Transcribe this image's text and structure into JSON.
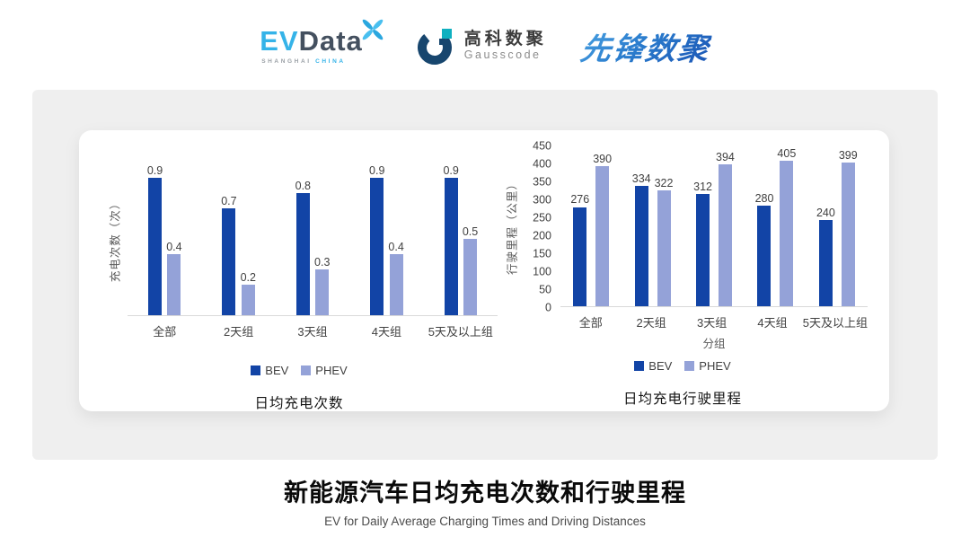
{
  "header": {
    "evdata": {
      "ev": "EV",
      "data": "Data",
      "sub_left": "SHANGHAI",
      "sub_right": "CHINA"
    },
    "gausscode": {
      "cn": "高科数聚",
      "en": "Gausscode"
    },
    "xianfeng": {
      "text": "先锋数聚"
    }
  },
  "colors": {
    "bev": "#1244a6",
    "phev": "#94a2d8",
    "panel_bg": "#efefef",
    "card_bg": "#ffffff",
    "axis_line": "#d9d9d9",
    "evdata_blue": "#35b3e8",
    "evdata_dark": "#44505f",
    "gausscode_navy": "#17466e",
    "gausscode_teal": "#0fb0c0",
    "xianfeng_blue": "#2a7ccd"
  },
  "chart_data": [
    {
      "type": "bar",
      "title": "日均充电次数",
      "ylabel": "充电次数（次）",
      "xlabel": "",
      "categories": [
        "全部",
        "2天组",
        "3天组",
        "4天组",
        "5天及以上组"
      ],
      "series": [
        {
          "name": "BEV",
          "color": "#1244a6",
          "values": [
            0.9,
            0.7,
            0.8,
            0.9,
            0.9
          ]
        },
        {
          "name": "PHEV",
          "color": "#94a2d8",
          "values": [
            0.4,
            0.2,
            0.3,
            0.4,
            0.5
          ]
        }
      ],
      "ylim": [
        0,
        1.0
      ],
      "yticks": null,
      "grid": false,
      "legend_position": "bottom"
    },
    {
      "type": "bar",
      "title": "日均充电行驶里程",
      "ylabel": "行驶里程（公里）",
      "xlabel": "分组",
      "categories": [
        "全部",
        "2天组",
        "3天组",
        "4天组",
        "5天及以上组"
      ],
      "series": [
        {
          "name": "BEV",
          "color": "#1244a6",
          "values": [
            276,
            334,
            312,
            280,
            240
          ]
        },
        {
          "name": "PHEV",
          "color": "#94a2d8",
          "values": [
            390,
            322,
            394,
            405,
            399
          ]
        }
      ],
      "ylim": [
        0,
        450
      ],
      "yticks": [
        0,
        50,
        100,
        150,
        200,
        250,
        300,
        350,
        400,
        450
      ],
      "grid": false,
      "legend_position": "bottom"
    }
  ],
  "footer": {
    "title": "新能源汽车日均充电次数和行驶里程",
    "subtitle": "EV for Daily Average Charging Times and Driving Distances"
  }
}
